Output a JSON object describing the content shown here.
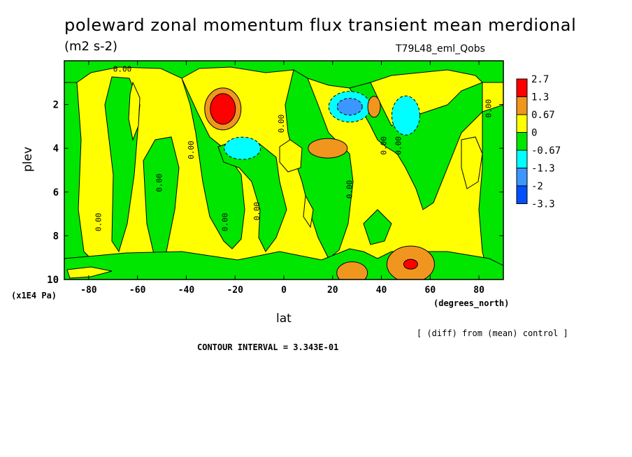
{
  "chart_data": {
    "type": "contour",
    "title": "poleward zonal momentum flux transient mean merdional",
    "units": "(m2 s-2)",
    "run_id": "T79L48_eml_Qobs",
    "xlabel": "lat",
    "x_units": "(degrees_north)",
    "ylabel": "plev",
    "y_units": "(x1E4 Pa)",
    "xlim": [
      -90,
      90
    ],
    "ylim": [
      10,
      0
    ],
    "x_ticks": [
      -80,
      -60,
      -40,
      -20,
      0,
      20,
      40,
      60,
      80
    ],
    "y_ticks": [
      2,
      4,
      6,
      8,
      10
    ],
    "note": "[ (diff) from (mean) control ]",
    "contour_interval_text": "CONTOUR INTERVAL = 3.343E-01",
    "contour_line_label": "0.00",
    "colorbar": {
      "labels": [
        "2.7",
        "1.3",
        "0.67",
        "0",
        "-0.67",
        "-1.3",
        "-2",
        "-3.3"
      ],
      "colors": [
        "#ff0000",
        "#f0961e",
        "#ffff00",
        "#00e600",
        "#00ffff",
        "#3c96ff",
        "#0050ff"
      ]
    },
    "features": [
      {
        "kind": "max",
        "lat": -25,
        "plev": 2.2,
        "value": 2.7
      },
      {
        "kind": "min",
        "lat": -17,
        "plev": 4.0,
        "value": -1.0
      },
      {
        "kind": "max",
        "lat": 18,
        "plev": 4.0,
        "value": 1.0
      },
      {
        "kind": "min",
        "lat": 27,
        "plev": 2.1,
        "value": -2.0
      },
      {
        "kind": "max",
        "lat": 37,
        "plev": 2.1,
        "value": 1.0
      },
      {
        "kind": "min",
        "lat": 50,
        "plev": 2.5,
        "value": -1.0
      },
      {
        "kind": "max",
        "lat": 52,
        "plev": 9.3,
        "value": 2.7
      },
      {
        "kind": "max",
        "lat": 28,
        "plev": 9.7,
        "value": 1.0
      }
    ]
  }
}
